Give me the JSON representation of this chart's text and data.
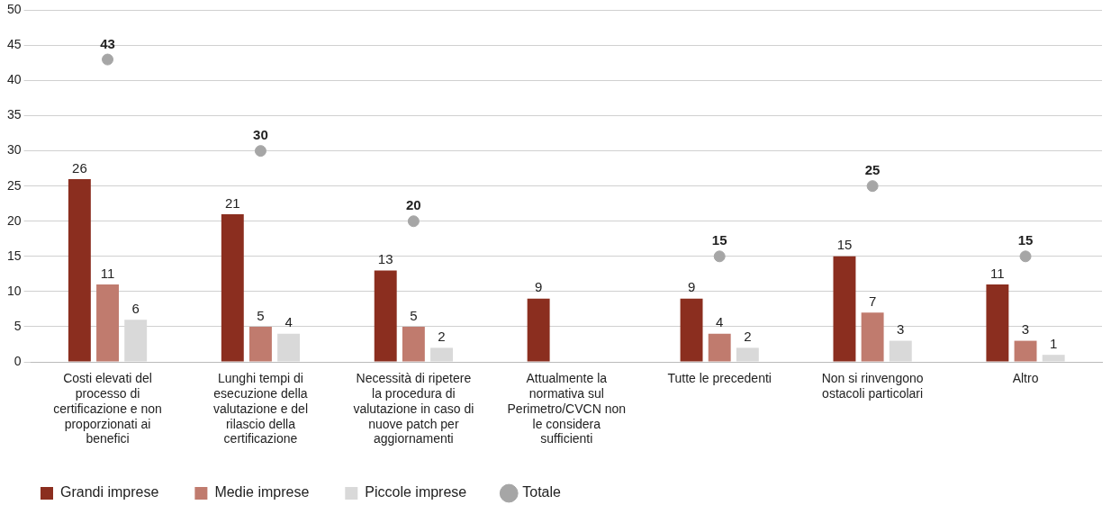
{
  "chart_data": {
    "type": "bar",
    "categories": [
      "Costi elevati del processo di certificazione e non proporzionati ai benefici",
      "Lunghi tempi di esecuzione della valutazione e del rilascio della certificazione",
      "Necessità di ripetere la procedura di valutazione in caso di nuove patch per aggiornamenti",
      "Attualmente la normativa sul Perimetro/CVCN non le considera sufficienti",
      "Tutte le precedenti",
      "Non si rinvengono ostacoli particolari",
      "Altro"
    ],
    "series": [
      {
        "name": "Grandi imprese",
        "color": "#8b2e1f",
        "values": [
          26,
          21,
          13,
          9,
          9,
          15,
          11
        ]
      },
      {
        "name": "Medie imprese",
        "color": "#c07b6e",
        "values": [
          11,
          5,
          5,
          null,
          4,
          7,
          3
        ]
      },
      {
        "name": "Piccole imprese",
        "color": "#d9d9d9",
        "values": [
          6,
          4,
          2,
          null,
          2,
          3,
          1
        ]
      },
      {
        "name": "Totale",
        "type": "scatter",
        "color": "#a6a6a6",
        "values": [
          43,
          30,
          20,
          null,
          15,
          25,
          15
        ]
      }
    ],
    "ylim": [
      0,
      50
    ],
    "yticks": [
      0,
      5,
      10,
      15,
      20,
      25,
      30,
      35,
      40,
      45,
      50
    ],
    "grid": "y",
    "legend": "bottom left",
    "marker": "circle",
    "data_labels": true
  }
}
